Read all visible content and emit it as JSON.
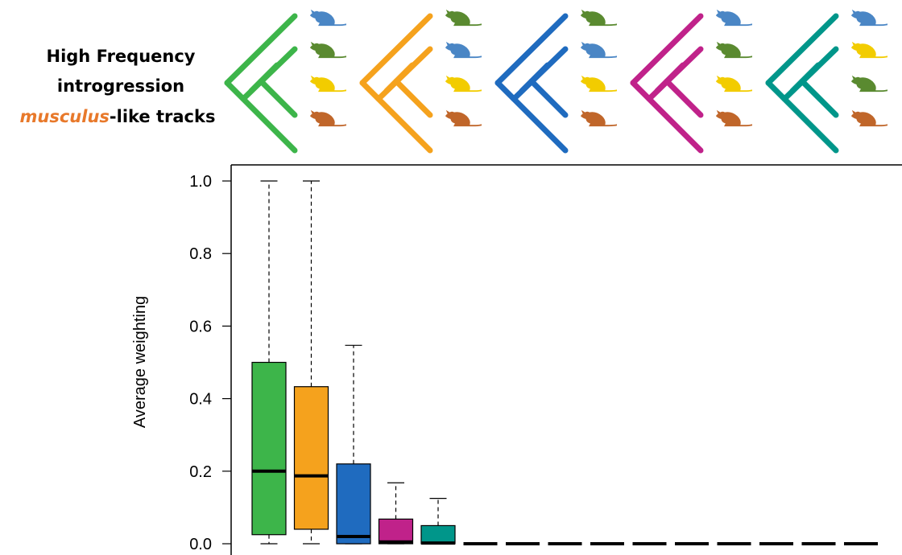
{
  "chart_data": {
    "type": "box",
    "title": [
      "High Frequency",
      "introgression"
    ],
    "title_emphasis": "musculus",
    "title_suffix": "-like tracks",
    "ylabel": "Average weighting",
    "categories": [
      null,
      null,
      null,
      null,
      null,
      null,
      null,
      null,
      null,
      null,
      null,
      null,
      null,
      null,
      null
    ],
    "boxes": [
      {
        "min": 0,
        "q1": 0.025,
        "median": 0.2,
        "q3": 0.5,
        "max": 1.0,
        "color": "#3db54a"
      },
      {
        "min": 0,
        "q1": 0.04,
        "median": 0.187,
        "q3": 0.433,
        "max": 1.0,
        "color": "#f5a21d"
      },
      {
        "min": 0,
        "q1": 0,
        "median": 0.02,
        "q3": 0.22,
        "max": 0.547,
        "color": "#1f6bbf"
      },
      {
        "min": 0,
        "q1": 0,
        "median": 0.005,
        "q3": 0.068,
        "max": 0.168,
        "color": "#c0228a"
      },
      {
        "min": 0,
        "q1": 0,
        "median": 0.002,
        "q3": 0.05,
        "max": 0.125,
        "color": "#00968a"
      },
      {
        "min": 0,
        "q1": 0,
        "median": 0,
        "q3": 0,
        "max": 0
      },
      {
        "min": 0,
        "q1": 0,
        "median": 0,
        "q3": 0,
        "max": 0
      },
      {
        "min": 0,
        "q1": 0,
        "median": 0,
        "q3": 0,
        "max": 0
      },
      {
        "min": 0,
        "q1": 0,
        "median": 0,
        "q3": 0,
        "max": 0
      },
      {
        "min": 0,
        "q1": 0,
        "median": 0,
        "q3": 0,
        "max": 0
      },
      {
        "min": 0,
        "q1": 0,
        "median": 0,
        "q3": 0,
        "max": 0
      },
      {
        "min": 0,
        "q1": 0,
        "median": 0,
        "q3": 0,
        "max": 0
      },
      {
        "min": 0,
        "q1": 0,
        "median": 0,
        "q3": 0,
        "max": 0
      },
      {
        "min": 0,
        "q1": 0,
        "median": 0,
        "q3": 0,
        "max": 0
      },
      {
        "min": 0,
        "q1": 0,
        "median": 0,
        "q3": 0,
        "max": 0
      }
    ],
    "ylim": [
      -0.04,
      1.044
    ],
    "yticks": [
      {
        "value": 0,
        "label": "0.0"
      },
      0.2,
      0.4,
      0.6,
      0.8,
      {
        "value": 1,
        "label": "1.0"
      }
    ]
  }
}
